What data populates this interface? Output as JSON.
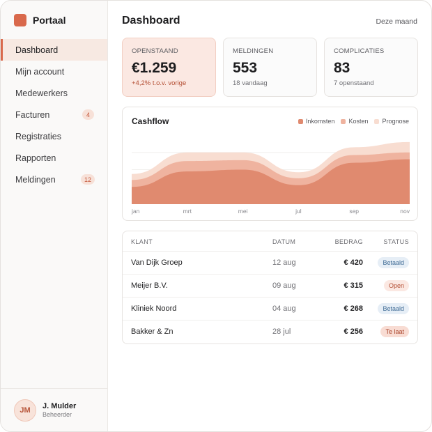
{
  "app": {
    "name": "Portaal"
  },
  "sidebar": {
    "items": [
      {
        "label": "Dashboard",
        "active": true
      },
      {
        "label": "Mijn account"
      },
      {
        "label": "Medewerkers"
      },
      {
        "label": "Facturen",
        "badge": "4"
      },
      {
        "label": "Registraties"
      },
      {
        "label": "Rapporten"
      },
      {
        "label": "Meldingen",
        "badge": "12"
      }
    ],
    "user": {
      "initials": "JM",
      "name": "J. Mulder",
      "role": "Beheerder"
    }
  },
  "header": {
    "title": "Dashboard",
    "period": "Deze maand"
  },
  "kpis": [
    {
      "label": "OPENSTAAND",
      "value": "€1.259",
      "sub": "+4,2% t.o.v. vorige"
    },
    {
      "label": "MELDINGEN",
      "value": "553",
      "sub": "18 vandaag"
    },
    {
      "label": "COMPLICATIES",
      "value": "83",
      "sub": "7 openstaand"
    }
  ],
  "colors": {
    "accent": "#d9694c",
    "inkomsten": "#e08a6f",
    "kosten": "#efb39f",
    "prognose": "#f8ddd1"
  },
  "chart_data": {
    "type": "area",
    "title": "Cashflow",
    "categories": [
      "jan",
      "mrt",
      "mei",
      "jul",
      "sep",
      "nov"
    ],
    "series": [
      {
        "name": "Inkomsten",
        "values": [
          20,
          38,
          40,
          22,
          48,
          52
        ]
      },
      {
        "name": "Kosten",
        "values": [
          8,
          12,
          11,
          8,
          9,
          8
        ]
      },
      {
        "name": "Prognose",
        "values": [
          7,
          10,
          9,
          7,
          9,
          12
        ]
      }
    ],
    "stacked": true,
    "legend": "top-right",
    "grid": true
  },
  "table": {
    "columns": [
      "KLANT",
      "DATUM",
      "BEDRAG",
      "STATUS"
    ],
    "rows": [
      {
        "client": "Van Dijk Groep",
        "date": "12 aug",
        "amount": "€ 420",
        "status": "Betaald"
      },
      {
        "client": "Meijer B.V.",
        "date": "09 aug",
        "amount": "€ 315",
        "status": "Open"
      },
      {
        "client": "Kliniek Noord",
        "date": "04 aug",
        "amount": "€ 268",
        "status": "Betaald"
      },
      {
        "client": "Bakker & Zn",
        "date": "28 jul",
        "amount": "€ 256",
        "status": "Te laat"
      }
    ]
  }
}
